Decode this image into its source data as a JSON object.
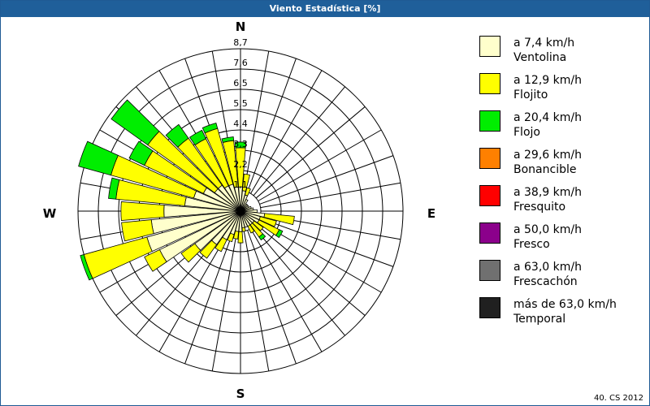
{
  "title": "Viento Estadística [%]",
  "footer": "40. CS 2012",
  "chart_data": {
    "type": "wind-rose",
    "title": "Viento Estadística [%]",
    "compass": {
      "N": "N",
      "E": "E",
      "S": "S",
      "W": "W"
    },
    "radial_ticks": [
      "1,1",
      "2,2",
      "3,3",
      "4,4",
      "5,5",
      "6,5",
      "7,6",
      "8,7"
    ],
    "rmax": 8.7,
    "directions_deg": [
      0,
      10,
      20,
      30,
      40,
      50,
      60,
      70,
      80,
      90,
      100,
      110,
      120,
      130,
      140,
      150,
      160,
      170,
      180,
      190,
      200,
      210,
      220,
      230,
      240,
      250,
      260,
      270,
      280,
      290,
      300,
      310,
      320,
      330,
      340,
      350
    ],
    "series": [
      {
        "name": "a 7,4 km/h",
        "label2": "Ventolina",
        "color": "#ffffcc",
        "values": [
          1.3,
          1.1,
          0.9,
          0.7,
          0.5,
          0.5,
          0.5,
          0.6,
          0.7,
          0.9,
          1.3,
          1.1,
          1.1,
          0.9,
          0.9,
          0.9,
          0.9,
          0.9,
          1.1,
          1.1,
          1.3,
          1.7,
          2.2,
          3.0,
          4.8,
          5.2,
          4.8,
          4.1,
          3.0,
          2.6,
          2.2,
          1.7,
          1.7,
          1.5,
          1.5,
          1.3
        ]
      },
      {
        "name": "a 12,9 km/h",
        "label2": "Flojito",
        "color": "#ffff00",
        "values": [
          2.1,
          0.9,
          0.4,
          0,
          0,
          0,
          0,
          0,
          0,
          0,
          1.6,
          0.9,
          1.2,
          0.6,
          0.8,
          0.4,
          0,
          0.2,
          0.6,
          0.4,
          0.4,
          0.7,
          0.9,
          0.9,
          0.9,
          3.5,
          1.6,
          2.3,
          3.7,
          4.6,
          3.5,
          4.4,
          3.1,
          2.8,
          3.1,
          2.5
        ]
      },
      {
        "name": "a 20,4 km/h",
        "label2": "Flojo",
        "color": "#00ee00",
        "values": [
          0.3,
          0,
          0,
          0,
          0,
          0,
          0,
          0,
          0,
          0,
          0,
          0,
          0.2,
          0,
          0.2,
          0,
          0,
          0,
          0,
          0,
          0,
          0,
          0,
          0,
          0,
          0.2,
          0,
          0,
          0.4,
          1.8,
          0.9,
          2.4,
          0.9,
          0.5,
          0.3,
          0.2
        ]
      },
      {
        "name": "a 29,6 km/h",
        "label2": "Bonancible",
        "color": "#ff8000",
        "values": []
      },
      {
        "name": "a 38,9 km/h",
        "label2": "Fresquito",
        "color": "#ff0000",
        "values": []
      },
      {
        "name": "a 50,0 km/h",
        "label2": "Fresco",
        "color": "#8b008b",
        "values": []
      },
      {
        "name": "a 63,0 km/h",
        "label2": "Frescachón",
        "color": "#707070",
        "values": []
      },
      {
        "name": "más de 63,0 km/h",
        "label2": "Temporal",
        "color": "#202020",
        "values": []
      }
    ]
  }
}
